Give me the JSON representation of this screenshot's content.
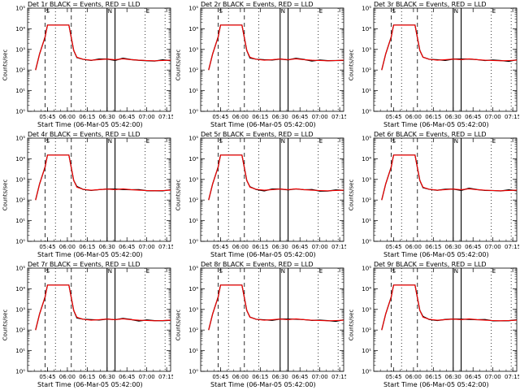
{
  "chart_data": {
    "type": "line",
    "layout": {
      "rows": 3,
      "cols": 3
    },
    "xlabel": "Start Time (06-Mar-05 05:42:00)",
    "ylabel": "Counts/sec",
    "yscale": "log",
    "ylim": [
      1,
      100000
    ],
    "xlim_minutes": [
      5.5,
      7.3
    ],
    "x_ticks": [
      "05:45",
      "06:00",
      "06:15",
      "06:30",
      "06:45",
      "07:00",
      "07:15"
    ],
    "y_ticks": [
      "10⁰",
      "10¹",
      "10²",
      "10³",
      "10⁴",
      "10⁵"
    ],
    "legend": {
      "black": "Events",
      "red": "LLD"
    },
    "colors": {
      "events": "#000000",
      "lld": "#ff0000"
    },
    "markers": [
      {
        "x": 5.72,
        "style": "dashed",
        "label": "S"
      },
      {
        "x": 5.85,
        "style": "dotted",
        "label": ""
      },
      {
        "x": 6.05,
        "style": "dashed",
        "label": ""
      },
      {
        "x": 6.23,
        "style": "dotted",
        "label": ""
      },
      {
        "x": 6.5,
        "style": "solid",
        "label": "N"
      },
      {
        "x": 6.6,
        "style": "solid",
        "label": ""
      },
      {
        "x": 6.98,
        "style": "dotted",
        "label": "E"
      },
      {
        "x": 7.23,
        "style": "dotted",
        "label": ""
      }
    ],
    "series_points": [
      [
        5.6,
        100
      ],
      [
        5.65,
        600
      ],
      [
        5.72,
        4000
      ],
      [
        5.75,
        15000
      ],
      [
        6.02,
        15000
      ],
      [
        6.08,
        900
      ],
      [
        6.12,
        420
      ],
      [
        6.2,
        330
      ],
      [
        6.3,
        300
      ],
      [
        6.4,
        320
      ],
      [
        6.5,
        340
      ],
      [
        6.6,
        320
      ],
      [
        6.7,
        350
      ],
      [
        6.8,
        320
      ],
      [
        6.9,
        300
      ],
      [
        7.0,
        290
      ],
      [
        7.1,
        280
      ],
      [
        7.2,
        290
      ],
      [
        7.3,
        300
      ]
    ],
    "panels": [
      {
        "title": "Det 1r BLACK = Events, RED = LLD"
      },
      {
        "title": "Det 2r BLACK = Events, RED = LLD"
      },
      {
        "title": "Det 3r BLACK = Events, RED = LLD"
      },
      {
        "title": "Det 4r BLACK = Events, RED = LLD"
      },
      {
        "title": "Det 5r BLACK = Events, RED = LLD"
      },
      {
        "title": "Det 6r BLACK = Events, RED = LLD"
      },
      {
        "title": "Det 7r BLACK = Events, RED = LLD"
      },
      {
        "title": "Det 8r BLACK = Events, RED = LLD"
      },
      {
        "title": "Det 9r BLACK = Events, RED = LLD"
      }
    ]
  }
}
